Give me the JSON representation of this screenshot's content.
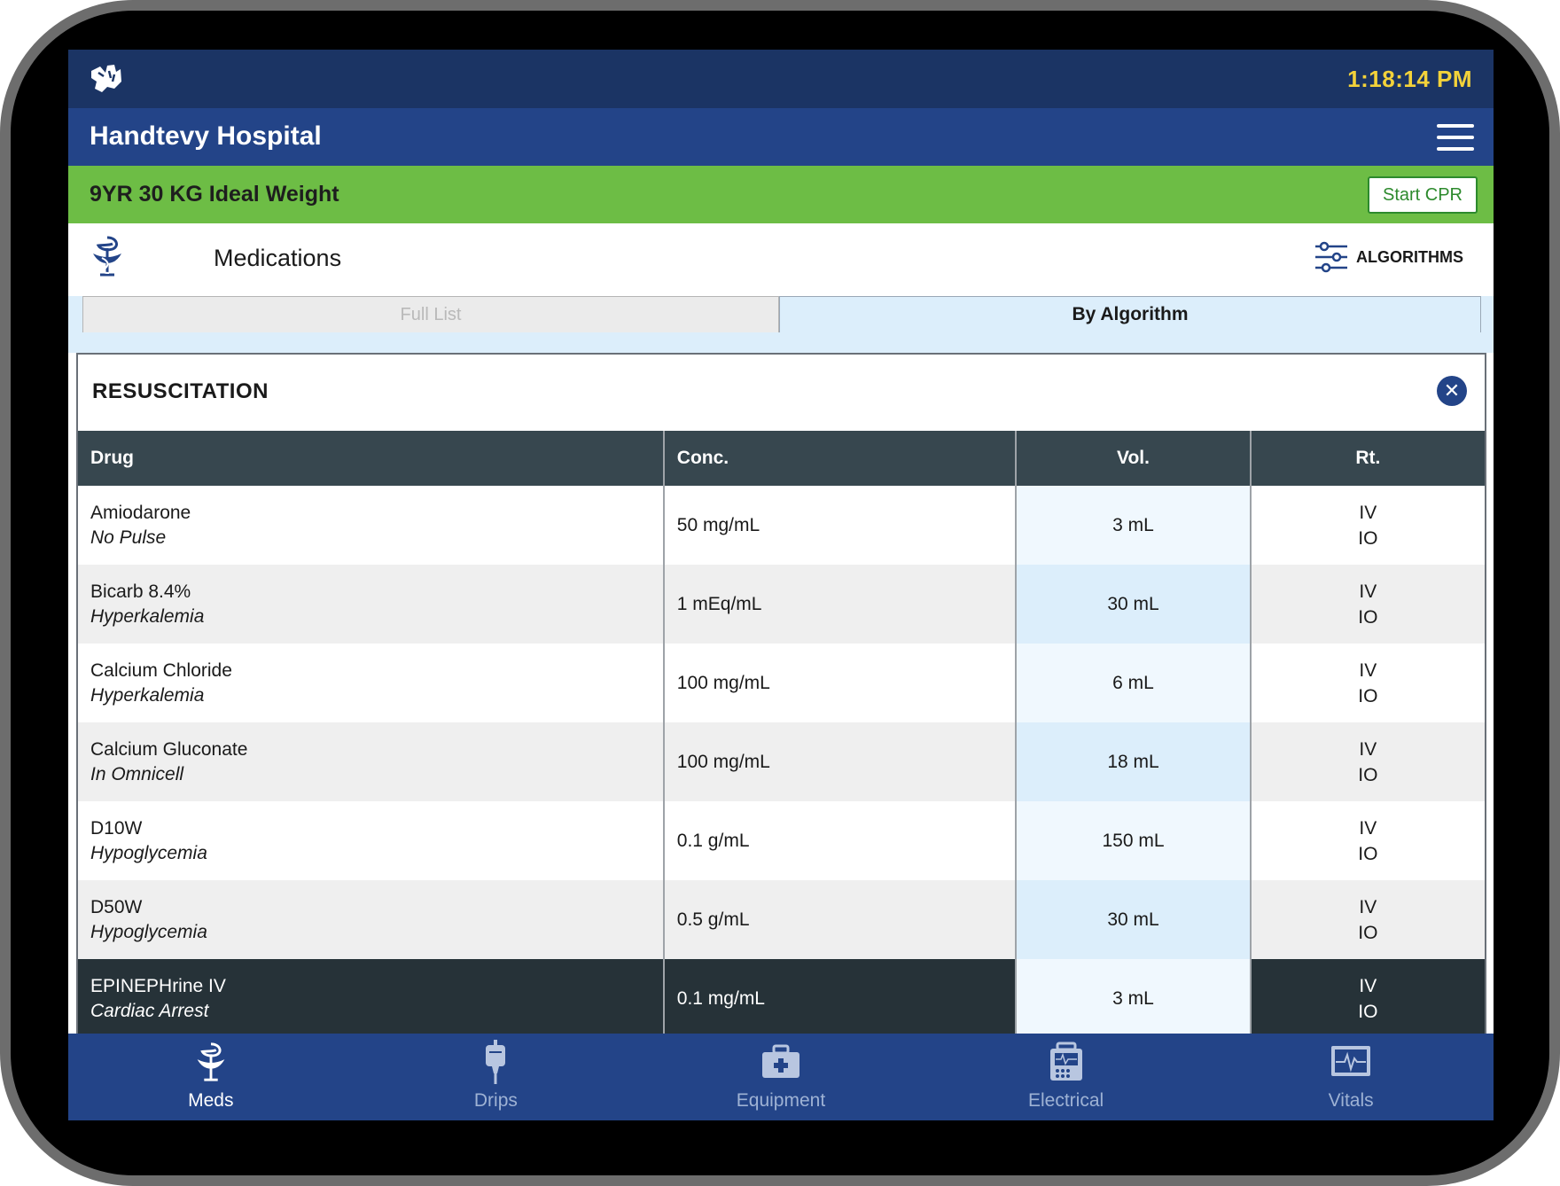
{
  "status": {
    "time": "1:18:14 PM"
  },
  "header": {
    "hospital": "Handtevy Hospital"
  },
  "patient": {
    "summary": "9YR 30 KG Ideal Weight",
    "cpr_button": "Start CPR"
  },
  "medications": {
    "title": "Medications",
    "algorithms_button": "ALGORITHMS"
  },
  "tabs": [
    {
      "label": "Full List",
      "active": false
    },
    {
      "label": "By Algorithm",
      "active": true
    }
  ],
  "section": {
    "title": "RESUSCITATION"
  },
  "table": {
    "columns": [
      "Drug",
      "Conc.",
      "Vol.",
      "Rt."
    ],
    "rows": [
      {
        "drug": "Amiodarone",
        "indication": "No Pulse",
        "conc": "50 mg/mL",
        "vol": "3 mL",
        "routes": [
          "IV",
          "IO"
        ]
      },
      {
        "drug": "Bicarb 8.4%",
        "indication": "Hyperkalemia",
        "conc": "1 mEq/mL",
        "vol": "30 mL",
        "routes": [
          "IV",
          "IO"
        ]
      },
      {
        "drug": "Calcium Chloride",
        "indication": "Hyperkalemia",
        "conc": "100 mg/mL",
        "vol": "6 mL",
        "routes": [
          "IV",
          "IO"
        ]
      },
      {
        "drug": "Calcium Gluconate",
        "indication": "In Omnicell",
        "conc": "100 mg/mL",
        "vol": "18 mL",
        "routes": [
          "IV",
          "IO"
        ]
      },
      {
        "drug": "D10W",
        "indication": "Hypoglycemia",
        "conc": "0.1 g/mL",
        "vol": "150 mL",
        "routes": [
          "IV",
          "IO"
        ]
      },
      {
        "drug": "D50W",
        "indication": "Hypoglycemia",
        "conc": "0.5 g/mL",
        "vol": "30 mL",
        "routes": [
          "IV",
          "IO"
        ]
      },
      {
        "drug": "EPINEPHrine IV",
        "indication": "Cardiac Arrest",
        "conc": "0.1 mg/mL",
        "vol": "3 mL",
        "routes": [
          "IV",
          "IO"
        ]
      }
    ]
  },
  "bottom_nav": [
    {
      "label": "Meds",
      "icon": "caduceus-icon",
      "active": true
    },
    {
      "label": "Drips",
      "icon": "iv-bag-icon",
      "active": false
    },
    {
      "label": "Equipment",
      "icon": "medical-kit-icon",
      "active": false
    },
    {
      "label": "Electrical",
      "icon": "defibrillator-icon",
      "active": false
    },
    {
      "label": "Vitals",
      "icon": "monitor-icon",
      "active": false
    }
  ],
  "colors": {
    "status_bar": "#1b3464",
    "nav_blue": "#234488",
    "patient_green": "#6dbd45",
    "time_yellow": "#f3d23a",
    "table_header": "#37474f"
  }
}
